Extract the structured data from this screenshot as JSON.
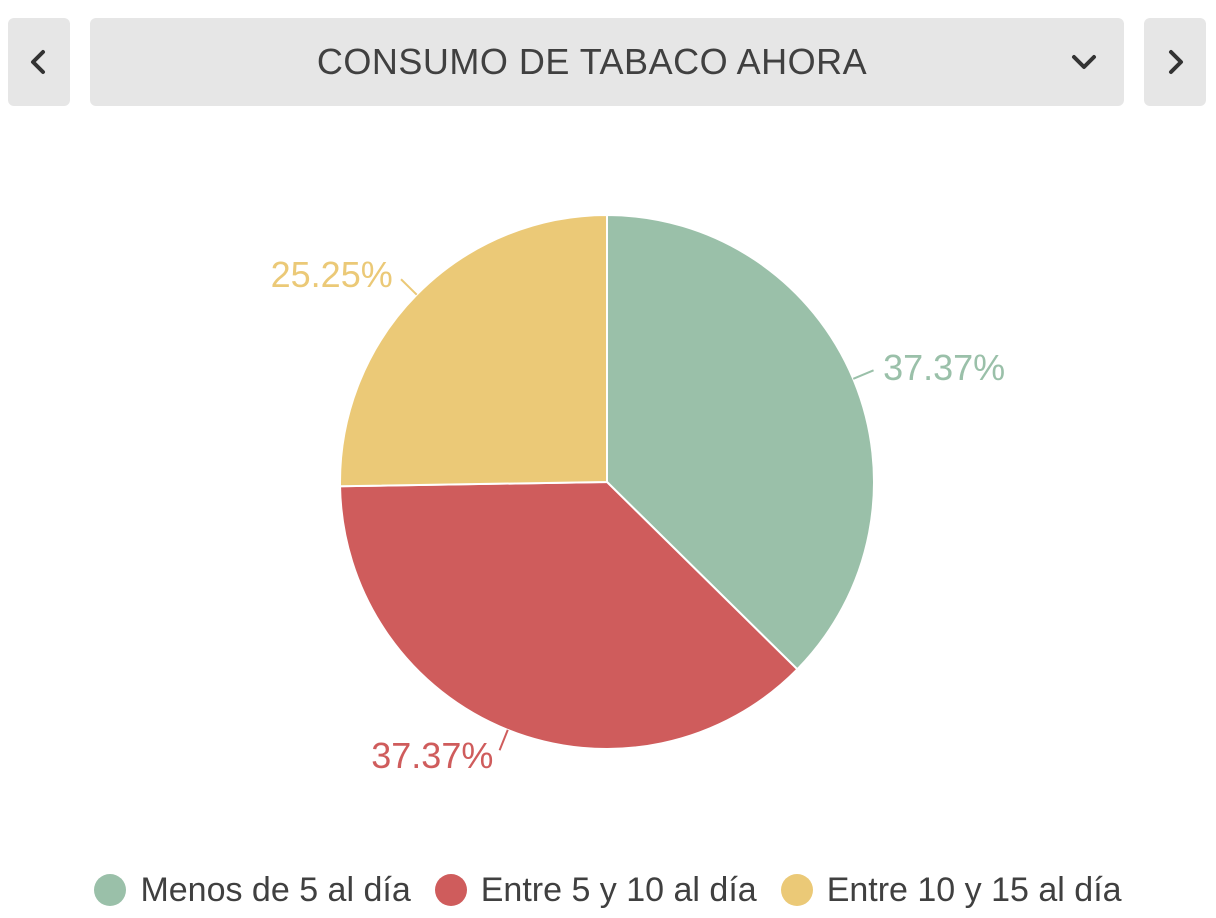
{
  "header": {
    "title": "CONSUMO DE TABACO AHORA",
    "prev_icon": "chevron-left-icon",
    "next_icon": "chevron-right-icon",
    "dropdown_icon": "chevron-down-icon"
  },
  "chart_data": {
    "type": "pie",
    "title": "",
    "categories": [
      "Menos de 5 al día",
      "Entre 5 y 10 al día",
      "Entre 10 y 15 al día"
    ],
    "values": [
      37.37,
      37.37,
      25.25
    ],
    "labels": [
      "37.37%",
      "37.37%",
      "25.25%"
    ],
    "colors": [
      "#9ac0a9",
      "#cf5c5c",
      "#ebc977"
    ],
    "legend": "bottom"
  }
}
